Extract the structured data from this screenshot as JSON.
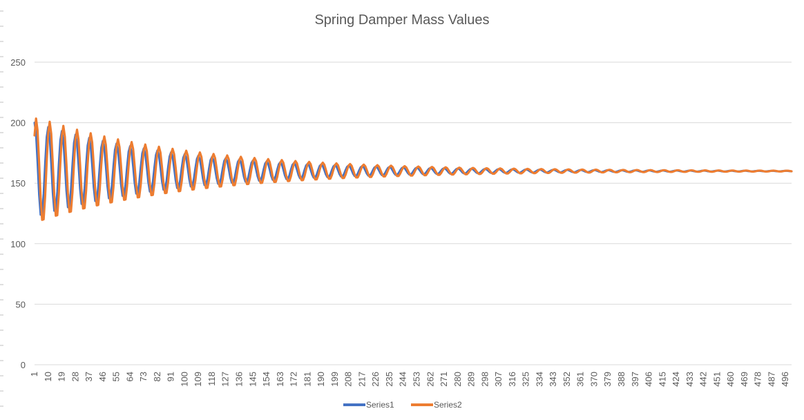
{
  "chart_data": {
    "type": "line",
    "title": "Spring Damper Mass Values",
    "xlabel": "",
    "ylabel": "",
    "ylim": [
      0,
      250
    ],
    "yticks": [
      0,
      50,
      100,
      150,
      200,
      250
    ],
    "xlim": [
      1,
      500
    ],
    "xtick_start": 1,
    "xtick_step": 9,
    "xtick_end": 496,
    "grid": "horizontal",
    "legend_position": "bottom",
    "model": {
      "note_free": true,
      "equilibrium": 160,
      "period_samples": 9,
      "series_params": [
        {
          "initial": 200,
          "amplitude": 40,
          "decay": 0.0105,
          "phase_shift": 0
        },
        {
          "initial": 200,
          "amplitude": 45,
          "decay": 0.0098,
          "phase_shift": 1
        }
      ]
    },
    "series": [
      {
        "name": "Series1",
        "color": "#4472c4"
      },
      {
        "name": "Series2",
        "color": "#ed7d31"
      }
    ]
  }
}
